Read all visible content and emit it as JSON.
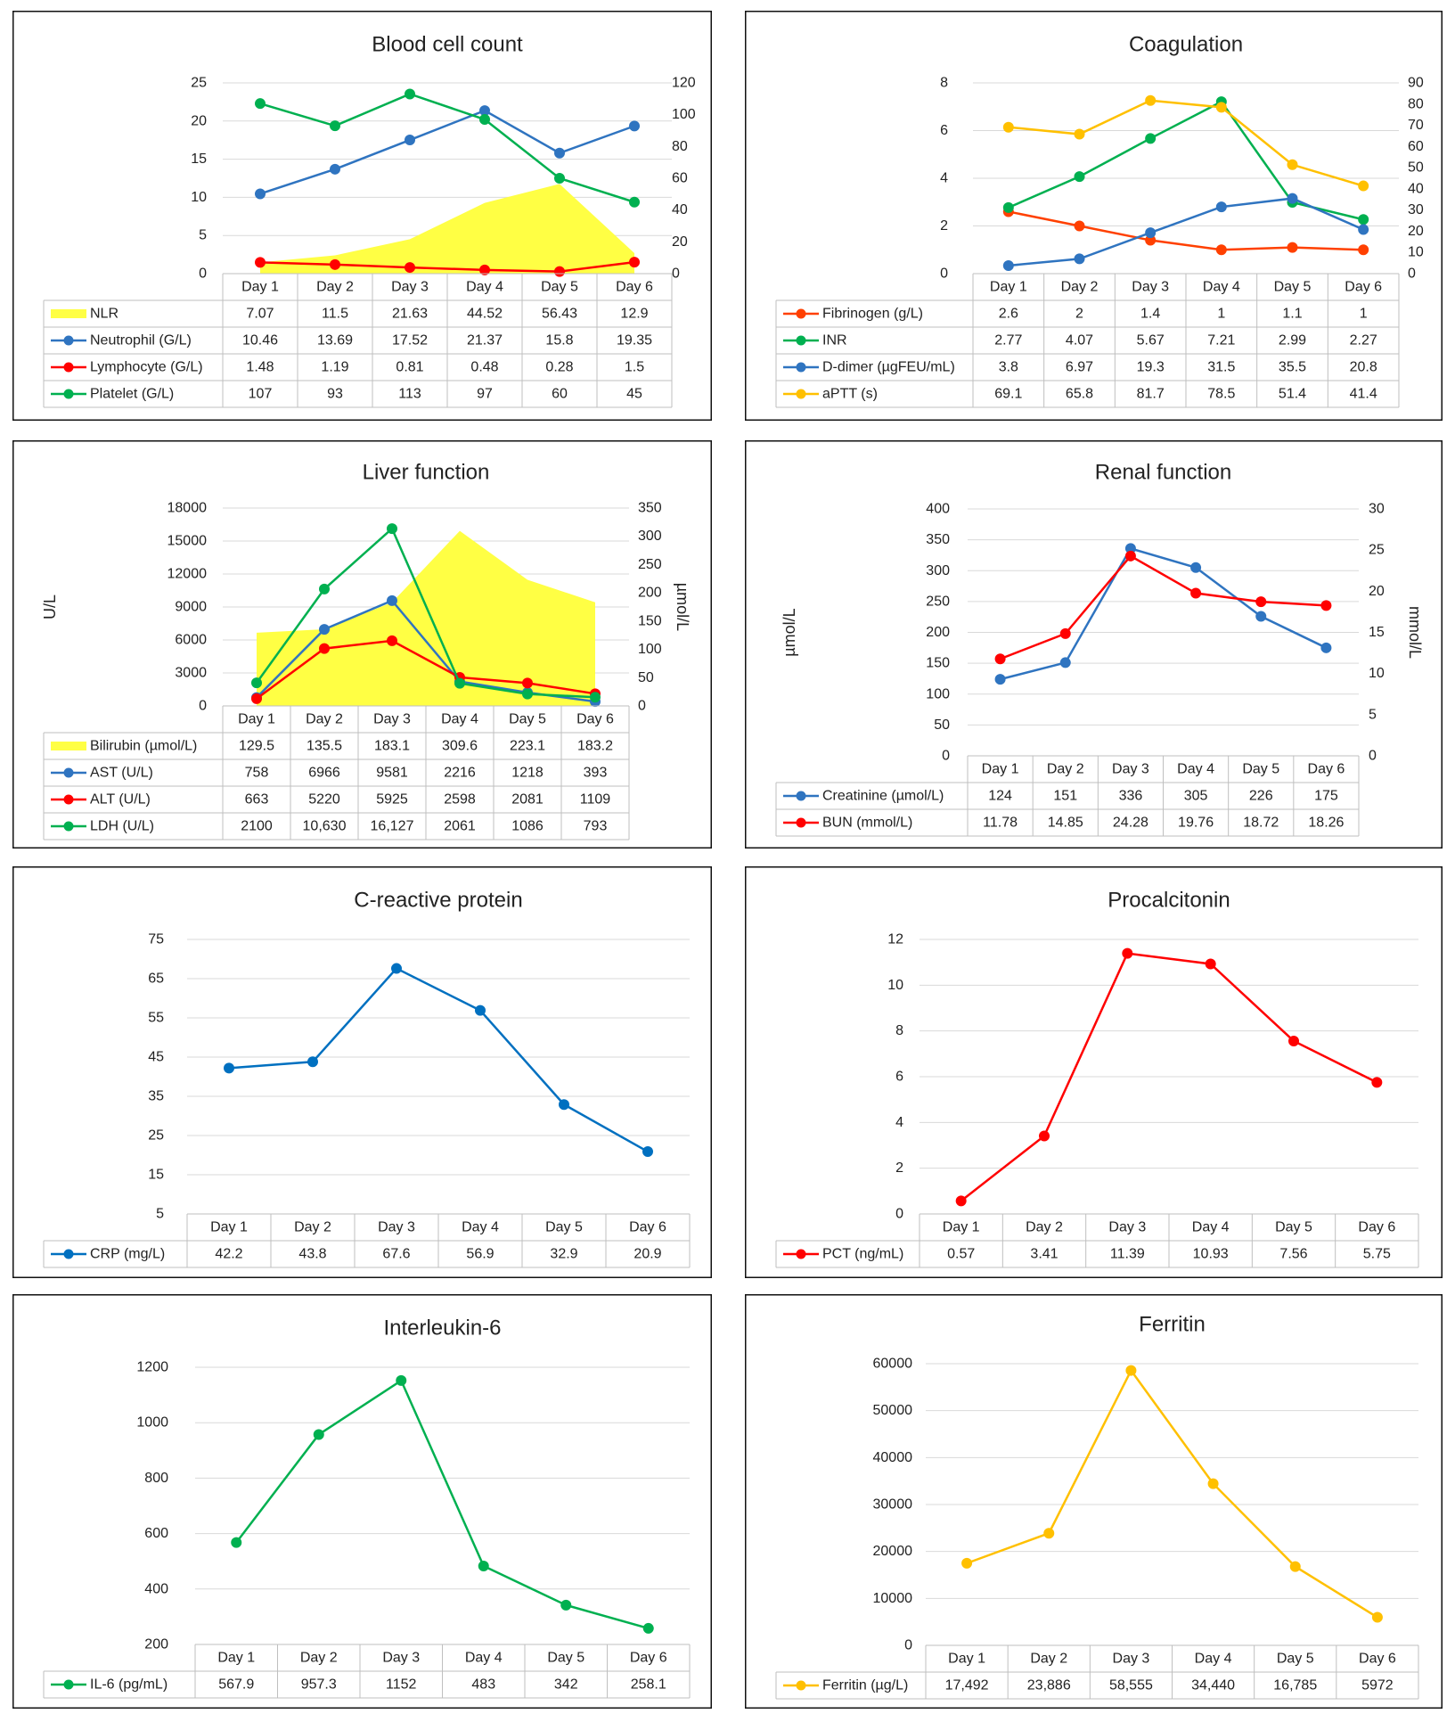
{
  "chart_data": [
    {
      "id": "blood",
      "type": "line",
      "title": "Blood cell count",
      "categories": [
        "Day 1",
        "Day 2",
        "Day 3",
        "Day 4",
        "Day 5",
        "Day 6"
      ],
      "y_left": {
        "ticks": [
          "0",
          "5",
          "10",
          "15",
          "20",
          "25"
        ],
        "range": [
          0,
          25
        ],
        "label": ""
      },
      "y_right": {
        "ticks": [
          "0",
          "20",
          "40",
          "60",
          "80",
          "100",
          "120"
        ],
        "range": [
          0,
          120
        ],
        "label": ""
      },
      "series": [
        {
          "name": "NLR",
          "kind": "area",
          "axis": "right",
          "color": "#ffff44",
          "values": [
            7.07,
            11.5,
            21.63,
            44.52,
            56.43,
            12.9
          ],
          "labels": [
            "7.07",
            "11.5",
            "21.63",
            "44.52",
            "56.43",
            "12.9"
          ]
        },
        {
          "name": "Neutrophil (G/L)",
          "kind": "line",
          "axis": "left",
          "color": "#2f74c0",
          "values": [
            10.46,
            13.69,
            17.52,
            21.37,
            15.8,
            19.35
          ],
          "labels": [
            "10.46",
            "13.69",
            "17.52",
            "21.37",
            "15.8",
            "19.35"
          ]
        },
        {
          "name": "Lymphocyte (G/L)",
          "kind": "line",
          "axis": "left",
          "color": "#ff0000",
          "values": [
            1.48,
            1.19,
            0.81,
            0.48,
            0.28,
            1.5
          ],
          "labels": [
            "1.48",
            "1.19",
            "0.81",
            "0.48",
            "0.28",
            "1.5"
          ]
        },
        {
          "name": "Platelet (G/L)",
          "kind": "line",
          "axis": "right",
          "color": "#00b050",
          "values": [
            107,
            93,
            113,
            97,
            60,
            45
          ],
          "labels": [
            "107",
            "93",
            "113",
            "97",
            "60",
            "45"
          ]
        }
      ]
    },
    {
      "id": "coag",
      "type": "line",
      "title": "Coagulation",
      "categories": [
        "Day 1",
        "Day 2",
        "Day 3",
        "Day 4",
        "Day 5",
        "Day 6"
      ],
      "y_left": {
        "ticks": [
          "0",
          "2",
          "4",
          "6",
          "8"
        ],
        "range": [
          0,
          8
        ],
        "label": ""
      },
      "y_right": {
        "ticks": [
          "0",
          "10",
          "20",
          "30",
          "40",
          "50",
          "60",
          "70",
          "80",
          "90"
        ],
        "range": [
          0,
          90
        ],
        "label": ""
      },
      "series": [
        {
          "name": "Fibrinogen (g/L)",
          "kind": "line",
          "axis": "left",
          "color": "#ff4000",
          "values": [
            2.6,
            2,
            1.4,
            1,
            1.1,
            1
          ],
          "labels": [
            "2.6",
            "2",
            "1.4",
            "1",
            "1.1",
            "1"
          ]
        },
        {
          "name": "INR",
          "kind": "line",
          "axis": "left",
          "color": "#00b050",
          "values": [
            2.77,
            4.07,
            5.67,
            7.21,
            2.99,
            2.27
          ],
          "labels": [
            "2.77",
            "4.07",
            "5.67",
            "7.21",
            "2.99",
            "2.27"
          ]
        },
        {
          "name": "D-dimer (µgFEU/mL)",
          "kind": "line",
          "axis": "right",
          "color": "#2f74c0",
          "values": [
            3.8,
            6.97,
            19.3,
            31.5,
            35.5,
            20.8
          ],
          "labels": [
            "3.8",
            "6.97",
            "19.3",
            "31.5",
            "35.5",
            "20.8"
          ]
        },
        {
          "name": "aPTT (s)",
          "kind": "line",
          "axis": "right",
          "color": "#ffc000",
          "values": [
            69.1,
            65.8,
            81.7,
            78.5,
            51.4,
            41.4
          ],
          "labels": [
            "69.1",
            "65.8",
            "81.7",
            "78.5",
            "51.4",
            "41.4"
          ]
        }
      ]
    },
    {
      "id": "liver",
      "type": "line",
      "title": "Liver function",
      "categories": [
        "Day 1",
        "Day 2",
        "Day 3",
        "Day 4",
        "Day 5",
        "Day 6"
      ],
      "y_left": {
        "ticks": [
          "0",
          "3000",
          "6000",
          "9000",
          "12000",
          "15000",
          "18000"
        ],
        "range": [
          0,
          18000
        ],
        "label": "U/L"
      },
      "y_right": {
        "ticks": [
          "0",
          "50",
          "100",
          "150",
          "200",
          "250",
          "300",
          "350"
        ],
        "range": [
          0,
          350
        ],
        "label": "µmol/L"
      },
      "series": [
        {
          "name": "Bilirubin (µmol/L)",
          "kind": "area",
          "axis": "right",
          "color": "#ffff44",
          "values": [
            129.5,
            135.5,
            183.1,
            309.6,
            223.1,
            183.2
          ],
          "labels": [
            "129.5",
            "135.5",
            "183.1",
            "309.6",
            "223.1",
            "183.2"
          ]
        },
        {
          "name": "AST (U/L)",
          "kind": "line",
          "axis": "left",
          "color": "#2f74c0",
          "values": [
            758,
            6966,
            9581,
            2216,
            1218,
            393
          ],
          "labels": [
            "758",
            "6966",
            "9581",
            "2216",
            "1218",
            "393"
          ]
        },
        {
          "name": "ALT (U/L)",
          "kind": "line",
          "axis": "left",
          "color": "#ff0000",
          "values": [
            663,
            5220,
            5925,
            2598,
            2081,
            1109
          ],
          "labels": [
            "663",
            "5220",
            "5925",
            "2598",
            "2081",
            "1109"
          ]
        },
        {
          "name": "LDH (U/L)",
          "kind": "line",
          "axis": "left",
          "color": "#00b050",
          "values": [
            2100,
            10630,
            16127,
            2061,
            1086,
            793
          ],
          "labels": [
            "2100",
            "10,630",
            "16,127",
            "2061",
            "1086",
            "793"
          ]
        }
      ]
    },
    {
      "id": "renal",
      "type": "line",
      "title": "Renal function",
      "categories": [
        "Day 1",
        "Day 2",
        "Day 3",
        "Day 4",
        "Day 5",
        "Day 6"
      ],
      "y_left": {
        "ticks": [
          "0",
          "50",
          "100",
          "150",
          "200",
          "250",
          "300",
          "350",
          "400"
        ],
        "range": [
          0,
          400
        ],
        "label": "µmol/L"
      },
      "y_right": {
        "ticks": [
          "0",
          "5",
          "10",
          "15",
          "20",
          "25",
          "30"
        ],
        "range": [
          0,
          30
        ],
        "label": "mmol/L"
      },
      "series": [
        {
          "name": "Creatinine (µmol/L)",
          "kind": "line",
          "axis": "left",
          "color": "#2f74c0",
          "values": [
            124,
            151,
            336,
            305,
            226,
            175
          ],
          "labels": [
            "124",
            "151",
            "336",
            "305",
            "226",
            "175"
          ]
        },
        {
          "name": "BUN (mmol/L)",
          "kind": "line",
          "axis": "right",
          "color": "#ff0000",
          "values": [
            11.78,
            14.85,
            24.28,
            19.76,
            18.72,
            18.26
          ],
          "labels": [
            "11.78",
            "14.85",
            "24.28",
            "19.76",
            "18.72",
            "18.26"
          ]
        }
      ]
    },
    {
      "id": "crp",
      "type": "line",
      "title": "C-reactive protein",
      "categories": [
        "Day 1",
        "Day 2",
        "Day 3",
        "Day 4",
        "Day 5",
        "Day 6"
      ],
      "y_left": {
        "ticks": [
          "5",
          "15",
          "25",
          "35",
          "45",
          "55",
          "65",
          "75"
        ],
        "range": [
          5,
          75
        ],
        "label": ""
      },
      "series": [
        {
          "name": "CRP (mg/L)",
          "kind": "line",
          "axis": "left",
          "color": "#0070c0",
          "values": [
            42.2,
            43.8,
            67.6,
            56.9,
            32.9,
            20.9
          ],
          "labels": [
            "42.2",
            "43.8",
            "67.6",
            "56.9",
            "32.9",
            "20.9"
          ]
        }
      ]
    },
    {
      "id": "pct",
      "type": "line",
      "title": "Procalcitonin",
      "categories": [
        "Day 1",
        "Day 2",
        "Day 3",
        "Day 4",
        "Day 5",
        "Day 6"
      ],
      "y_left": {
        "ticks": [
          "0",
          "2",
          "4",
          "6",
          "8",
          "10",
          "12"
        ],
        "range": [
          0,
          12
        ],
        "label": ""
      },
      "series": [
        {
          "name": "PCT (ng/mL)",
          "kind": "line",
          "axis": "left",
          "color": "#ff0000",
          "values": [
            0.57,
            3.41,
            11.39,
            10.93,
            7.56,
            5.75
          ],
          "labels": [
            "0.57",
            "3.41",
            "11.39",
            "10.93",
            "7.56",
            "5.75"
          ]
        }
      ]
    },
    {
      "id": "il6",
      "type": "line",
      "title": "Interleukin-6",
      "categories": [
        "Day 1",
        "Day 2",
        "Day 3",
        "Day 4",
        "Day 5",
        "Day 6"
      ],
      "y_left": {
        "ticks": [
          "200",
          "400",
          "600",
          "800",
          "1000",
          "1200"
        ],
        "range": [
          200,
          1200
        ],
        "label": ""
      },
      "series": [
        {
          "name": "IL-6 (pg/mL)",
          "kind": "line",
          "axis": "left",
          "color": "#00b050",
          "values": [
            567.9,
            957.3,
            1152,
            483,
            342,
            258.1
          ],
          "labels": [
            "567.9",
            "957.3",
            "1152",
            "483",
            "342",
            "258.1"
          ]
        }
      ]
    },
    {
      "id": "ferritin",
      "type": "line",
      "title": "Ferritin",
      "categories": [
        "Day 1",
        "Day 2",
        "Day 3",
        "Day 4",
        "Day 5",
        "Day 6"
      ],
      "y_left": {
        "ticks": [
          "0",
          "10000",
          "20000",
          "30000",
          "40000",
          "50000",
          "60000"
        ],
        "range": [
          0,
          60000
        ],
        "label": ""
      },
      "series": [
        {
          "name": "Ferritin (µg/L)",
          "kind": "line",
          "axis": "left",
          "color": "#ffc000",
          "values": [
            17492,
            23886,
            58555,
            34440,
            16785,
            5972
          ],
          "labels": [
            "17,492",
            "23,886",
            "58,555",
            "34,440",
            "16,785",
            "5972"
          ]
        }
      ]
    }
  ]
}
